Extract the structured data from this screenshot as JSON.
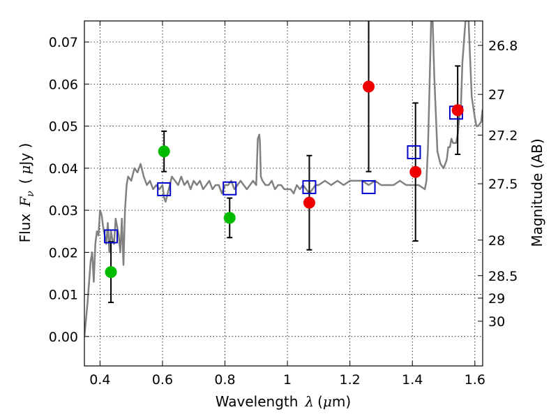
{
  "chart_data": {
    "type": "scatter",
    "xlabel_text": "Wavelength",
    "xlabel_symbol": "λ",
    "xlabel_unit_open": "(",
    "xlabel_unit_mu": "μ",
    "xlabel_unit_rest": "m)",
    "ylabel_text": "Flux",
    "ylabel_symbol": "F",
    "ylabel_sub": "ν",
    "ylabel_unit_open": "(",
    "ylabel_unit_mu": "μ",
    "ylabel_unit_rest": "Jy )",
    "ylabel_right": "Magnitude (AB)",
    "xlim": [
      0.35,
      1.625
    ],
    "ylim": [
      -0.007,
      0.075
    ],
    "grid": true,
    "grid_style": "dotted",
    "x_ticks": [
      {
        "value": 0.4,
        "label": "0.4"
      },
      {
        "value": 0.6,
        "label": "0.6"
      },
      {
        "value": 0.8,
        "label": "0.8"
      },
      {
        "value": 1.0,
        "label": "1"
      },
      {
        "value": 1.2,
        "label": "1.2"
      },
      {
        "value": 1.4,
        "label": "1.4"
      },
      {
        "value": 1.6,
        "label": "1.6"
      }
    ],
    "y_ticks": [
      {
        "value": 0.0,
        "label": "0.00"
      },
      {
        "value": 0.01,
        "label": "0.01"
      },
      {
        "value": 0.02,
        "label": "0.02"
      },
      {
        "value": 0.03,
        "label": "0.03"
      },
      {
        "value": 0.04,
        "label": "0.04"
      },
      {
        "value": 0.05,
        "label": "0.05"
      },
      {
        "value": 0.06,
        "label": "0.06"
      },
      {
        "value": 0.07,
        "label": "0.07"
      }
    ],
    "mag_ticks": [
      {
        "mag": 26.8,
        "label": "26.8"
      },
      {
        "mag": 27.0,
        "label": "27"
      },
      {
        "mag": 27.2,
        "label": "27.2"
      },
      {
        "mag": 27.5,
        "label": "27.5"
      },
      {
        "mag": 28.0,
        "label": "28"
      },
      {
        "mag": 28.5,
        "label": "28.5"
      },
      {
        "mag": 29.0,
        "label": "29"
      },
      {
        "mag": 30.0,
        "label": "30"
      }
    ],
    "series": [
      {
        "kind": "model_spectrum",
        "color": "#808080",
        "x": [
          0.35,
          0.36,
          0.37,
          0.375,
          0.38,
          0.385,
          0.39,
          0.395,
          0.4,
          0.405,
          0.41,
          0.415,
          0.42,
          0.425,
          0.43,
          0.435,
          0.44,
          0.445,
          0.45,
          0.455,
          0.46,
          0.465,
          0.47,
          0.475,
          0.48,
          0.485,
          0.49,
          0.5,
          0.51,
          0.52,
          0.53,
          0.54,
          0.55,
          0.56,
          0.57,
          0.58,
          0.59,
          0.6,
          0.605,
          0.61,
          0.62,
          0.63,
          0.64,
          0.65,
          0.66,
          0.67,
          0.68,
          0.69,
          0.7,
          0.71,
          0.72,
          0.73,
          0.74,
          0.75,
          0.76,
          0.77,
          0.78,
          0.79,
          0.8,
          0.81,
          0.82,
          0.83,
          0.84,
          0.85,
          0.86,
          0.87,
          0.88,
          0.89,
          0.9,
          0.905,
          0.91,
          0.912,
          0.915,
          0.92,
          0.93,
          0.94,
          0.95,
          0.96,
          0.97,
          0.98,
          0.99,
          1.0,
          1.01,
          1.02,
          1.03,
          1.04,
          1.05,
          1.06,
          1.07,
          1.08,
          1.09,
          1.1,
          1.12,
          1.14,
          1.16,
          1.18,
          1.2,
          1.22,
          1.24,
          1.26,
          1.28,
          1.3,
          1.32,
          1.34,
          1.36,
          1.38,
          1.4,
          1.42,
          1.44,
          1.445,
          1.45,
          1.455,
          1.46,
          1.462,
          1.465,
          1.47,
          1.48,
          1.49,
          1.5,
          1.51,
          1.515,
          1.52,
          1.525,
          1.53,
          1.54,
          1.545,
          1.55,
          1.555,
          1.56,
          1.57,
          1.58,
          1.59,
          1.6,
          1.605,
          1.61,
          1.62,
          1.625
        ],
        "y": [
          0.0,
          0.008,
          0.018,
          0.02,
          0.013,
          0.022,
          0.025,
          0.024,
          0.03,
          0.029,
          0.026,
          0.024,
          0.022,
          0.027,
          0.02,
          0.025,
          0.023,
          0.022,
          0.028,
          0.026,
          0.024,
          0.02,
          0.028,
          0.017,
          0.03,
          0.036,
          0.038,
          0.037,
          0.04,
          0.039,
          0.041,
          0.038,
          0.036,
          0.037,
          0.035,
          0.036,
          0.035,
          0.036,
          0.033,
          0.032,
          0.035,
          0.038,
          0.037,
          0.036,
          0.038,
          0.036,
          0.037,
          0.035,
          0.037,
          0.036,
          0.037,
          0.035,
          0.036,
          0.037,
          0.035,
          0.036,
          0.036,
          0.034,
          0.036,
          0.036,
          0.037,
          0.035,
          0.036,
          0.037,
          0.036,
          0.035,
          0.036,
          0.037,
          0.036,
          0.047,
          0.048,
          0.046,
          0.038,
          0.037,
          0.036,
          0.036,
          0.037,
          0.035,
          0.036,
          0.036,
          0.035,
          0.035,
          0.035,
          0.034,
          0.036,
          0.035,
          0.036,
          0.035,
          0.034,
          0.035,
          0.036,
          0.036,
          0.037,
          0.036,
          0.037,
          0.036,
          0.037,
          0.037,
          0.037,
          0.036,
          0.037,
          0.036,
          0.036,
          0.036,
          0.037,
          0.036,
          0.036,
          0.036,
          0.035,
          0.037,
          0.045,
          0.06,
          0.075,
          0.08,
          0.075,
          0.062,
          0.044,
          0.041,
          0.04,
          0.042,
          0.045,
          0.045,
          0.047,
          0.046,
          0.046,
          0.048,
          0.052,
          0.054,
          0.065,
          0.08,
          0.075,
          0.057,
          0.052,
          0.05,
          0.05,
          0.051,
          0.054
        ]
      },
      {
        "kind": "model_points",
        "marker": "open-square",
        "color": "#0000cc",
        "x": [
          0.435,
          0.605,
          0.815,
          1.07,
          1.26,
          1.405,
          1.54
        ],
        "y": [
          0.0238,
          0.035,
          0.0352,
          0.0355,
          0.0355,
          0.0438,
          0.0532
        ]
      },
      {
        "kind": "detections",
        "marker": "filled-circle",
        "color": "#00bb00",
        "x": [
          0.435,
          0.605,
          0.815
        ],
        "y": [
          0.0153,
          0.044,
          0.0282
        ],
        "yerr": [
          0.0072,
          0.0048,
          0.0047
        ]
      },
      {
        "kind": "detections",
        "marker": "filled-circle",
        "color": "#ee0000",
        "x": [
          1.07,
          1.26,
          1.41,
          1.545
        ],
        "y": [
          0.0318,
          0.0594,
          0.0391,
          0.0538
        ],
        "yerr": [
          0.0112,
          0.0202,
          0.0164,
          0.0105
        ]
      }
    ]
  }
}
